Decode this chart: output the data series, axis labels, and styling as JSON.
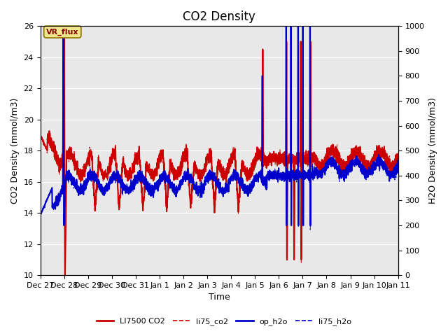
{
  "title": "CO2 Density",
  "xlabel": "Time",
  "ylabel_left": "CO2 Density (mmol/m3)",
  "ylabel_right": "H2O Density (mmol/m3)",
  "ylim_left": [
    10,
    26
  ],
  "ylim_right": [
    0,
    1000
  ],
  "yticks_left": [
    10,
    12,
    14,
    16,
    18,
    20,
    22,
    24,
    26
  ],
  "yticks_right": [
    0,
    100,
    200,
    300,
    400,
    500,
    600,
    700,
    800,
    900,
    1000
  ],
  "bg_color": "#e8e8e8",
  "fig_bg": "#ffffff",
  "vr_flux_label": "VR_flux",
  "legend_entries": [
    "LI7500 CO2",
    "li75_co2",
    "op_h2o",
    "li75_h2o"
  ],
  "line_LI7500_CO2_color": "#cc0000",
  "line_li75_co2_color": "#cc0000",
  "line_op_h2o_color": "#0000cc",
  "line_li75_h2o_color": "#0000cc",
  "line_LI7500_CO2_lw": 1.5,
  "line_li75_co2_lw": 0.8,
  "line_op_h2o_lw": 1.5,
  "line_li75_h2o_lw": 0.8,
  "x_tick_labels": [
    "Dec 27",
    "Dec 28",
    "Dec 29",
    "Dec 30",
    "Dec 31",
    "Jan 1",
    "Jan 2",
    "Jan 3",
    "Jan 4",
    "Jan 5",
    "Jan 6",
    "Jan 7",
    "Jan 8",
    "Jan 9",
    "Jan 10",
    "Jan 11"
  ]
}
